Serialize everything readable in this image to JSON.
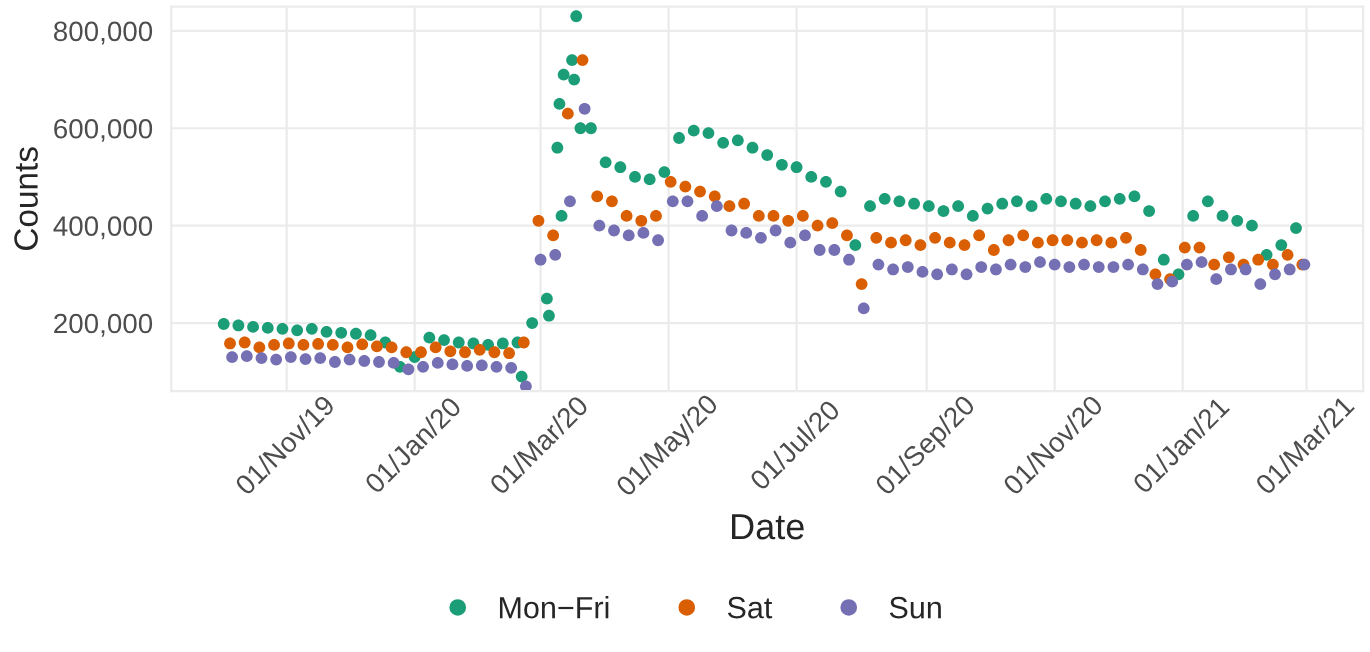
{
  "chart_data": {
    "type": "scatter",
    "xlabel": "Date",
    "ylabel": "Counts",
    "xlim": [
      "2019-09-07",
      "2021-03-28"
    ],
    "ylim": [
      60000,
      850000
    ],
    "xticks": [
      {
        "value": "2019-11-01",
        "label": "01/Nov/19"
      },
      {
        "value": "2020-01-01",
        "label": "01/Jan/20"
      },
      {
        "value": "2020-03-01",
        "label": "01/Mar/20"
      },
      {
        "value": "2020-05-01",
        "label": "01/May/20"
      },
      {
        "value": "2020-07-01",
        "label": "01/Jul/20"
      },
      {
        "value": "2020-09-01",
        "label": "01/Sep/20"
      },
      {
        "value": "2020-11-01",
        "label": "01/Nov/20"
      },
      {
        "value": "2021-01-01",
        "label": "01/Jan/21"
      },
      {
        "value": "2021-03-01",
        "label": "01/Mar/21"
      }
    ],
    "yticks": [
      {
        "value": 200000,
        "label": "200,000"
      },
      {
        "value": 400000,
        "label": "400,000"
      },
      {
        "value": 600000,
        "label": "600,000"
      },
      {
        "value": 800000,
        "label": "800,000"
      }
    ],
    "grid": true,
    "legend": "bottom",
    "marker": "circle",
    "series": [
      {
        "name": "Mon−Fri",
        "color": "#1b9e77",
        "x": [
          "2019-10-02",
          "2019-10-09",
          "2019-10-16",
          "2019-10-23",
          "2019-10-30",
          "2019-11-06",
          "2019-11-13",
          "2019-11-20",
          "2019-11-27",
          "2019-12-04",
          "2019-12-11",
          "2019-12-18",
          "2019-12-25",
          "2020-01-01",
          "2020-01-08",
          "2020-01-15",
          "2020-01-22",
          "2020-01-29",
          "2020-02-05",
          "2020-02-12",
          "2020-02-19",
          "2020-02-21",
          "2020-02-26",
          "2020-03-04",
          "2020-03-05",
          "2020-03-09",
          "2020-03-10",
          "2020-03-11",
          "2020-03-12",
          "2020-03-16",
          "2020-03-17",
          "2020-03-18",
          "2020-03-20",
          "2020-03-25",
          "2020-04-01",
          "2020-04-08",
          "2020-04-15",
          "2020-04-22",
          "2020-04-29",
          "2020-05-06",
          "2020-05-13",
          "2020-05-20",
          "2020-05-27",
          "2020-06-03",
          "2020-06-10",
          "2020-06-17",
          "2020-06-24",
          "2020-07-01",
          "2020-07-08",
          "2020-07-15",
          "2020-07-22",
          "2020-07-29",
          "2020-08-05",
          "2020-08-12",
          "2020-08-19",
          "2020-08-26",
          "2020-09-02",
          "2020-09-09",
          "2020-09-16",
          "2020-09-23",
          "2020-09-30",
          "2020-10-07",
          "2020-10-14",
          "2020-10-21",
          "2020-10-28",
          "2020-11-04",
          "2020-11-11",
          "2020-11-18",
          "2020-11-25",
          "2020-12-02",
          "2020-12-09",
          "2020-12-16",
          "2020-12-23",
          "2020-12-30",
          "2021-01-06",
          "2021-01-13",
          "2021-01-20",
          "2021-01-27",
          "2021-02-03",
          "2021-02-10",
          "2021-02-17",
          "2021-02-24"
        ],
        "values": [
          198000,
          195000,
          192000,
          190000,
          188000,
          185000,
          188000,
          182000,
          180000,
          178000,
          175000,
          160000,
          110000,
          130000,
          170000,
          165000,
          160000,
          158000,
          155000,
          158000,
          160000,
          90000,
          200000,
          250000,
          215000,
          560000,
          650000,
          420000,
          710000,
          740000,
          700000,
          830000,
          600000,
          600000,
          530000,
          520000,
          500000,
          495000,
          510000,
          580000,
          595000,
          590000,
          570000,
          575000,
          560000,
          545000,
          525000,
          520000,
          500000,
          490000,
          470000,
          360000,
          440000,
          455000,
          450000,
          445000,
          440000,
          430000,
          440000,
          420000,
          435000,
          445000,
          450000,
          440000,
          455000,
          450000,
          445000,
          440000,
          450000,
          455000,
          460000,
          430000,
          330000,
          300000,
          420000,
          450000,
          420000,
          410000,
          400000,
          340000,
          360000,
          395000
        ]
      },
      {
        "name": "Sat",
        "color": "#d95f02",
        "x": [
          "2019-10-05",
          "2019-10-12",
          "2019-10-19",
          "2019-10-26",
          "2019-11-02",
          "2019-11-09",
          "2019-11-16",
          "2019-11-23",
          "2019-11-30",
          "2019-12-07",
          "2019-12-14",
          "2019-12-21",
          "2019-12-28",
          "2020-01-04",
          "2020-01-11",
          "2020-01-18",
          "2020-01-25",
          "2020-02-01",
          "2020-02-08",
          "2020-02-15",
          "2020-02-22",
          "2020-02-29",
          "2020-03-07",
          "2020-03-14",
          "2020-03-21",
          "2020-03-28",
          "2020-04-04",
          "2020-04-11",
          "2020-04-18",
          "2020-04-25",
          "2020-05-02",
          "2020-05-09",
          "2020-05-16",
          "2020-05-23",
          "2020-05-30",
          "2020-06-06",
          "2020-06-13",
          "2020-06-20",
          "2020-06-27",
          "2020-07-04",
          "2020-07-11",
          "2020-07-18",
          "2020-07-25",
          "2020-08-01",
          "2020-08-08",
          "2020-08-15",
          "2020-08-22",
          "2020-08-29",
          "2020-09-05",
          "2020-09-12",
          "2020-09-19",
          "2020-09-26",
          "2020-10-03",
          "2020-10-10",
          "2020-10-17",
          "2020-10-24",
          "2020-10-31",
          "2020-11-07",
          "2020-11-14",
          "2020-11-21",
          "2020-11-28",
          "2020-12-05",
          "2020-12-12",
          "2020-12-19",
          "2020-12-26",
          "2021-01-02",
          "2021-01-09",
          "2021-01-16",
          "2021-01-23",
          "2021-01-30",
          "2021-02-06",
          "2021-02-13",
          "2021-02-20",
          "2021-02-27"
        ],
        "values": [
          158000,
          160000,
          150000,
          155000,
          158000,
          155000,
          157000,
          155000,
          150000,
          156000,
          152000,
          150000,
          140000,
          140000,
          150000,
          142000,
          140000,
          145000,
          140000,
          138000,
          160000,
          410000,
          380000,
          630000,
          740000,
          460000,
          450000,
          420000,
          410000,
          420000,
          490000,
          480000,
          470000,
          460000,
          440000,
          445000,
          420000,
          420000,
          410000,
          420000,
          400000,
          405000,
          380000,
          280000,
          375000,
          365000,
          370000,
          360000,
          375000,
          365000,
          360000,
          380000,
          350000,
          370000,
          380000,
          365000,
          370000,
          370000,
          365000,
          370000,
          365000,
          375000,
          350000,
          300000,
          290000,
          355000,
          355000,
          320000,
          335000,
          320000,
          330000,
          320000,
          340000,
          320000
        ]
      },
      {
        "name": "Sun",
        "color": "#7570b3",
        "x": [
          "2019-10-06",
          "2019-10-13",
          "2019-10-20",
          "2019-10-27",
          "2019-11-03",
          "2019-11-10",
          "2019-11-17",
          "2019-11-24",
          "2019-12-01",
          "2019-12-08",
          "2019-12-15",
          "2019-12-22",
          "2019-12-29",
          "2020-01-05",
          "2020-01-12",
          "2020-01-19",
          "2020-01-26",
          "2020-02-02",
          "2020-02-09",
          "2020-02-16",
          "2020-02-23",
          "2020-03-01",
          "2020-03-08",
          "2020-03-15",
          "2020-03-22",
          "2020-03-29",
          "2020-04-05",
          "2020-04-12",
          "2020-04-19",
          "2020-04-26",
          "2020-05-03",
          "2020-05-10",
          "2020-05-17",
          "2020-05-24",
          "2020-05-31",
          "2020-06-07",
          "2020-06-14",
          "2020-06-21",
          "2020-06-28",
          "2020-07-05",
          "2020-07-12",
          "2020-07-19",
          "2020-07-26",
          "2020-08-02",
          "2020-08-09",
          "2020-08-16",
          "2020-08-23",
          "2020-08-30",
          "2020-09-06",
          "2020-09-13",
          "2020-09-20",
          "2020-09-27",
          "2020-10-04",
          "2020-10-11",
          "2020-10-18",
          "2020-10-25",
          "2020-11-01",
          "2020-11-08",
          "2020-11-15",
          "2020-11-22",
          "2020-11-29",
          "2020-12-06",
          "2020-12-13",
          "2020-12-20",
          "2020-12-27",
          "2021-01-03",
          "2021-01-10",
          "2021-01-17",
          "2021-01-24",
          "2021-01-31",
          "2021-02-07",
          "2021-02-14",
          "2021-02-21",
          "2021-02-28"
        ],
        "values": [
          130000,
          132000,
          128000,
          125000,
          130000,
          126000,
          128000,
          120000,
          125000,
          122000,
          120000,
          118000,
          105000,
          110000,
          118000,
          115000,
          112000,
          113000,
          110000,
          108000,
          70000,
          330000,
          340000,
          450000,
          640000,
          400000,
          390000,
          380000,
          385000,
          370000,
          450000,
          450000,
          420000,
          440000,
          390000,
          385000,
          375000,
          390000,
          365000,
          380000,
          350000,
          350000,
          330000,
          230000,
          320000,
          310000,
          315000,
          305000,
          300000,
          310000,
          300000,
          315000,
          310000,
          320000,
          315000,
          325000,
          320000,
          315000,
          320000,
          315000,
          315000,
          320000,
          310000,
          280000,
          285000,
          320000,
          325000,
          290000,
          310000,
          310000,
          280000,
          300000,
          310000,
          320000
        ]
      }
    ]
  }
}
